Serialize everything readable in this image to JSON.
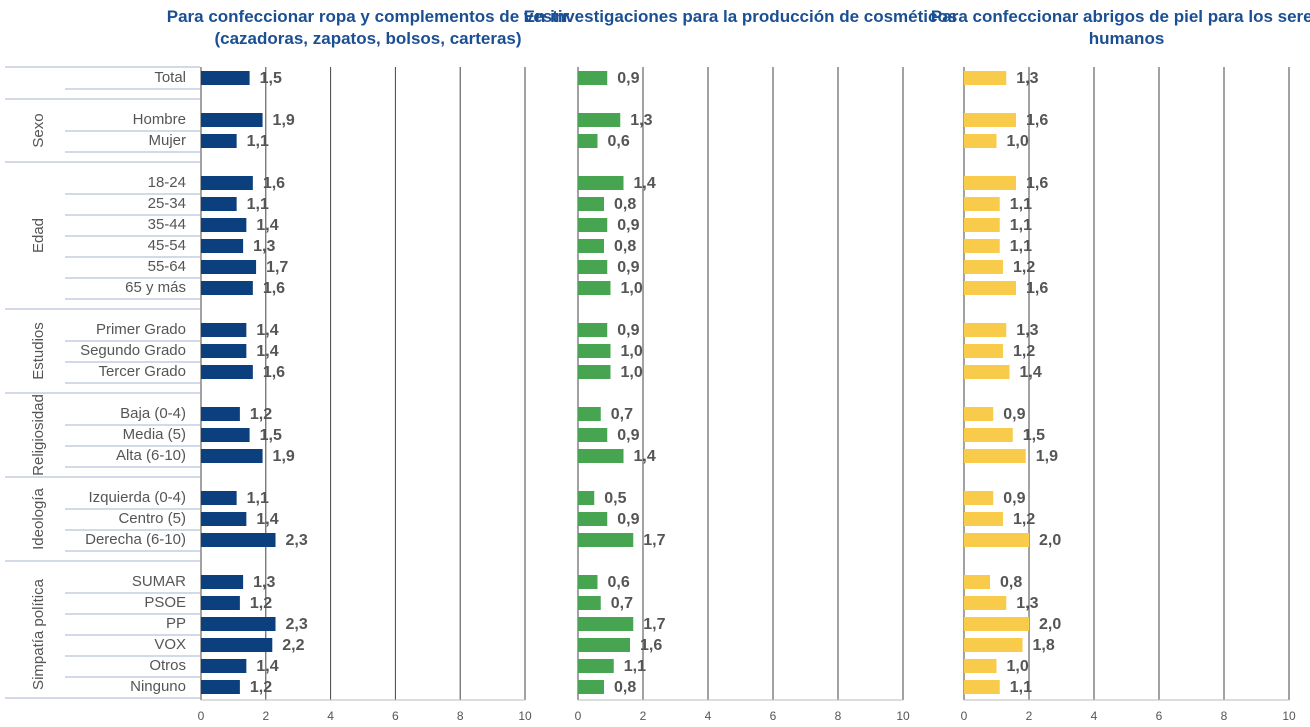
{
  "chart_data": {
    "type": "bar",
    "orientation": "horizontal",
    "groups": [
      {
        "name": null,
        "categories": [
          "Total"
        ]
      },
      {
        "name": "Sexo",
        "categories": [
          "Hombre",
          "Mujer"
        ]
      },
      {
        "name": "Edad",
        "categories": [
          "18-24",
          "25-34",
          "35-44",
          "45-54",
          "55-64",
          "65 y más"
        ]
      },
      {
        "name": "Estudios",
        "categories": [
          "Primer Grado",
          "Segundo Grado",
          "Tercer Grado"
        ]
      },
      {
        "name": "Religiosidad",
        "categories": [
          "Baja (0-4)",
          "Media (5)",
          "Alta (6-10)"
        ]
      },
      {
        "name": "Ideología",
        "categories": [
          "Izquierda (0-4)",
          "Centro (5)",
          "Derecha (6-10)"
        ]
      },
      {
        "name": "Simpatía política",
        "categories": [
          "SUMAR",
          "PSOE",
          "PP",
          "VOX",
          "Otros",
          "Ninguno"
        ]
      }
    ],
    "series": [
      {
        "name": "Para confeccionar ropa y complementos de vestir (cazadoras, zapatos, bolsos, carteras)",
        "color": "#0b3f7d",
        "values": [
          1.5,
          1.9,
          1.1,
          1.6,
          1.1,
          1.4,
          1.3,
          1.7,
          1.6,
          1.4,
          1.4,
          1.6,
          1.2,
          1.5,
          1.9,
          1.1,
          1.4,
          2.3,
          1.3,
          1.2,
          2.3,
          2.2,
          1.4,
          1.2
        ],
        "value_labels": [
          "1,5",
          "1,9",
          "1,1",
          "1,6",
          "1,1",
          "1,4",
          "1,3",
          "1,7",
          "1,6",
          "1,4",
          "1,4",
          "1,6",
          "1,2",
          "1,5",
          "1,9",
          "1,1",
          "1,4",
          "2,3",
          "1,3",
          "1,2",
          "2,3",
          "2,2",
          "1,4",
          "1,2"
        ]
      },
      {
        "name": "En investigaciones para la producción de cosméticos",
        "color": "#47a551",
        "values": [
          0.9,
          1.3,
          0.6,
          1.4,
          0.8,
          0.9,
          0.8,
          0.9,
          1.0,
          0.9,
          1.0,
          1.0,
          0.7,
          0.9,
          1.4,
          0.5,
          0.9,
          1.7,
          0.6,
          0.7,
          1.7,
          1.6,
          1.1,
          0.8
        ],
        "value_labels": [
          "0,9",
          "1,3",
          "0,6",
          "1,4",
          "0,8",
          "0,9",
          "0,8",
          "0,9",
          "1,0",
          "0,9",
          "1,0",
          "1,0",
          "0,7",
          "0,9",
          "1,4",
          "0,5",
          "0,9",
          "1,7",
          "0,6",
          "0,7",
          "1,7",
          "1,6",
          "1,1",
          "0,8"
        ]
      },
      {
        "name": "Para confeccionar abrigos de piel para los seres humanos",
        "color": "#f8cb4a",
        "values": [
          1.3,
          1.6,
          1.0,
          1.6,
          1.1,
          1.1,
          1.1,
          1.2,
          1.6,
          1.3,
          1.2,
          1.4,
          0.9,
          1.5,
          1.9,
          0.9,
          1.2,
          2.0,
          0.8,
          1.3,
          2.0,
          1.8,
          1.0,
          1.1
        ],
        "value_labels": [
          "1,3",
          "1,6",
          "1,0",
          "1,6",
          "1,1",
          "1,1",
          "1,1",
          "1,2",
          "1,6",
          "1,3",
          "1,2",
          "1,4",
          "0,9",
          "1,5",
          "1,9",
          "0,9",
          "1,2",
          "2,0",
          "0,8",
          "1,3",
          "2,0",
          "1,8",
          "1,0",
          "1,1"
        ]
      }
    ],
    "xlim": [
      0,
      10
    ],
    "xticks": [
      0,
      2,
      4,
      6,
      8,
      10
    ],
    "grid": true
  }
}
